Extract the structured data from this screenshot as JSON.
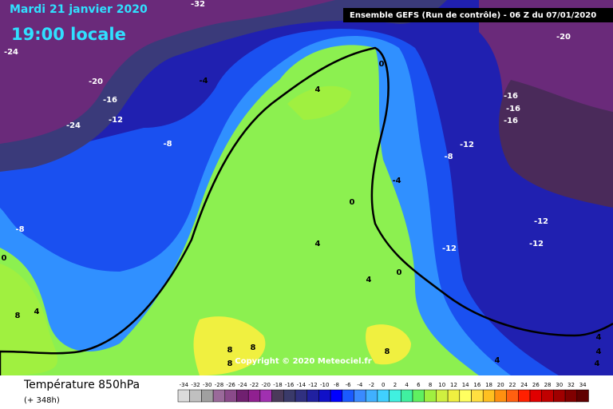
{
  "header": {
    "date": "Mardi 21 janvier 2020",
    "time": "19:00 locale",
    "model": "Ensemble GEFS  (Run de contrôle)  -  06 Z du 07/01/2020"
  },
  "copyright": "Copyright © 2020 Meteociel.fr",
  "footer": {
    "title": "Température 850hPa",
    "lead": "(+ 348h)"
  },
  "contour_labels": [
    -32,
    -24,
    -20,
    -4,
    -16,
    -12,
    -24,
    -8,
    -8,
    0,
    8,
    4,
    4,
    0,
    -20,
    -16,
    -16,
    -16,
    -12,
    -8,
    -4,
    0,
    -12,
    -12,
    -12,
    4,
    4,
    0,
    8,
    8,
    8,
    8,
    4,
    4,
    4,
    4
  ],
  "colorbar": {
    "ticks": [
      -34,
      -32,
      -30,
      -28,
      -26,
      -24,
      -22,
      -20,
      -18,
      -16,
      -14,
      -12,
      -10,
      -8,
      -6,
      -4,
      -2,
      0,
      2,
      4,
      6,
      8,
      10,
      12,
      14,
      16,
      18,
      20,
      22,
      24,
      26,
      28,
      30,
      32,
      34
    ],
    "colors": [
      "#dcdcdc",
      "#c0c0c0",
      "#a0a0a0",
      "#9a6a9a",
      "#8a4a8a",
      "#702070",
      "#902090",
      "#a030b0",
      "#4a3a5a",
      "#3a3a6a",
      "#303080",
      "#2020a0",
      "#1010c8",
      "#0000ff",
      "#1a5aff",
      "#3a8aff",
      "#40b0ff",
      "#40d0ff",
      "#40f0e0",
      "#40f0a0",
      "#60f060",
      "#a0f040",
      "#d0f040",
      "#f0f040",
      "#ffff60",
      "#ffe040",
      "#ffc020",
      "#ff9010",
      "#ff6010",
      "#ff2000",
      "#e00000",
      "#c00000",
      "#a00000",
      "#800000",
      "#600000"
    ]
  }
}
